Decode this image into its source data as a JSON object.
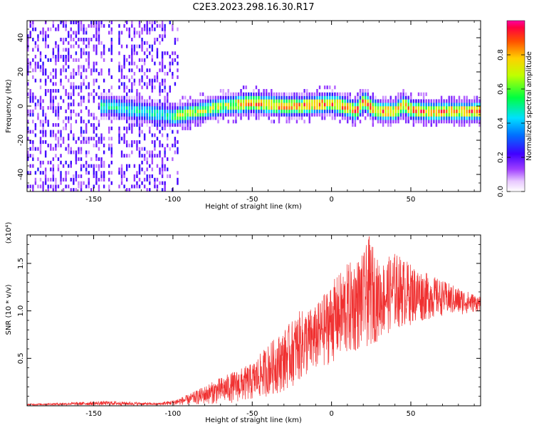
{
  "title": "C2E3.2023.298.16.30.R17",
  "chart_data": [
    {
      "type": "heatmap",
      "xlabel": "Height of straight line (km)",
      "ylabel": "Frequency (Hz)",
      "xlim": [
        -192,
        94
      ],
      "ylim": [
        -50,
        50
      ],
      "xticks": [
        -150,
        -100,
        -50,
        0,
        50
      ],
      "yticks": [
        -40,
        -20,
        0,
        20,
        40
      ],
      "colorbar": {
        "label": "Normalized spectral amplitude",
        "range": [
          0,
          1
        ],
        "ticks": [
          "0.0",
          "0.2",
          "0.4",
          "0.6",
          "0.8"
        ],
        "colormap": "rainbow (white-violet-blue-cyan-green-yellow-red)"
      },
      "ridge_centerline": [
        [
          -140,
          0
        ],
        [
          -120,
          -3
        ],
        [
          -105,
          -5
        ],
        [
          -100,
          -6
        ],
        [
          -90,
          -4
        ],
        [
          -80,
          -2
        ],
        [
          -70,
          0
        ],
        [
          -60,
          1
        ],
        [
          -50,
          2
        ],
        [
          -40,
          1
        ],
        [
          -30,
          0
        ],
        [
          -20,
          0
        ],
        [
          -10,
          1
        ],
        [
          0,
          2
        ],
        [
          10,
          -1
        ],
        [
          15,
          -3
        ],
        [
          20,
          3
        ],
        [
          25,
          -1
        ],
        [
          30,
          -3
        ],
        [
          40,
          -3
        ],
        [
          45,
          1
        ],
        [
          50,
          -2
        ],
        [
          60,
          -3
        ],
        [
          70,
          -3
        ],
        [
          80,
          -3
        ],
        [
          90,
          -3
        ]
      ],
      "noise_region_x": [
        -192,
        -97
      ]
    },
    {
      "type": "line",
      "xlabel": "Height of straight line (km)",
      "ylabel": "SNR (10 * v/v)",
      "y_multiplier": "(x10⁴)",
      "xlim": [
        -192,
        94
      ],
      "ylim": [
        0,
        1.8
      ],
      "xticks": [
        -150,
        -100,
        -50,
        0,
        50
      ],
      "yticks": [
        0.5,
        1.0,
        1.5
      ],
      "color": "#f03030",
      "envelope": [
        {
          "x": -192,
          "lo": 0.005,
          "hi": 0.02
        },
        {
          "x": -140,
          "lo": 0.005,
          "hi": 0.05
        },
        {
          "x": -110,
          "lo": 0.005,
          "hi": 0.03
        },
        {
          "x": -100,
          "lo": 0.005,
          "hi": 0.06
        },
        {
          "x": -90,
          "lo": 0.01,
          "hi": 0.12
        },
        {
          "x": -70,
          "lo": 0.02,
          "hi": 0.3
        },
        {
          "x": -50,
          "lo": 0.05,
          "hi": 0.45
        },
        {
          "x": -40,
          "lo": 0.1,
          "hi": 0.65
        },
        {
          "x": -30,
          "lo": 0.15,
          "hi": 0.8
        },
        {
          "x": -20,
          "lo": 0.25,
          "hi": 1.0
        },
        {
          "x": -10,
          "lo": 0.35,
          "hi": 1.05
        },
        {
          "x": 0,
          "lo": 0.45,
          "hi": 1.3
        },
        {
          "x": 10,
          "lo": 0.5,
          "hi": 1.5
        },
        {
          "x": 20,
          "lo": 0.6,
          "hi": 1.6
        },
        {
          "x": 24,
          "lo": 0.6,
          "hi": 1.8
        },
        {
          "x": 30,
          "lo": 0.7,
          "hi": 1.5
        },
        {
          "x": 40,
          "lo": 0.8,
          "hi": 1.62
        },
        {
          "x": 50,
          "lo": 0.85,
          "hi": 1.5
        },
        {
          "x": 60,
          "lo": 0.9,
          "hi": 1.4
        },
        {
          "x": 70,
          "lo": 0.95,
          "hi": 1.32
        },
        {
          "x": 80,
          "lo": 0.95,
          "hi": 1.25
        },
        {
          "x": 94,
          "lo": 1.0,
          "hi": 1.15
        }
      ]
    }
  ]
}
